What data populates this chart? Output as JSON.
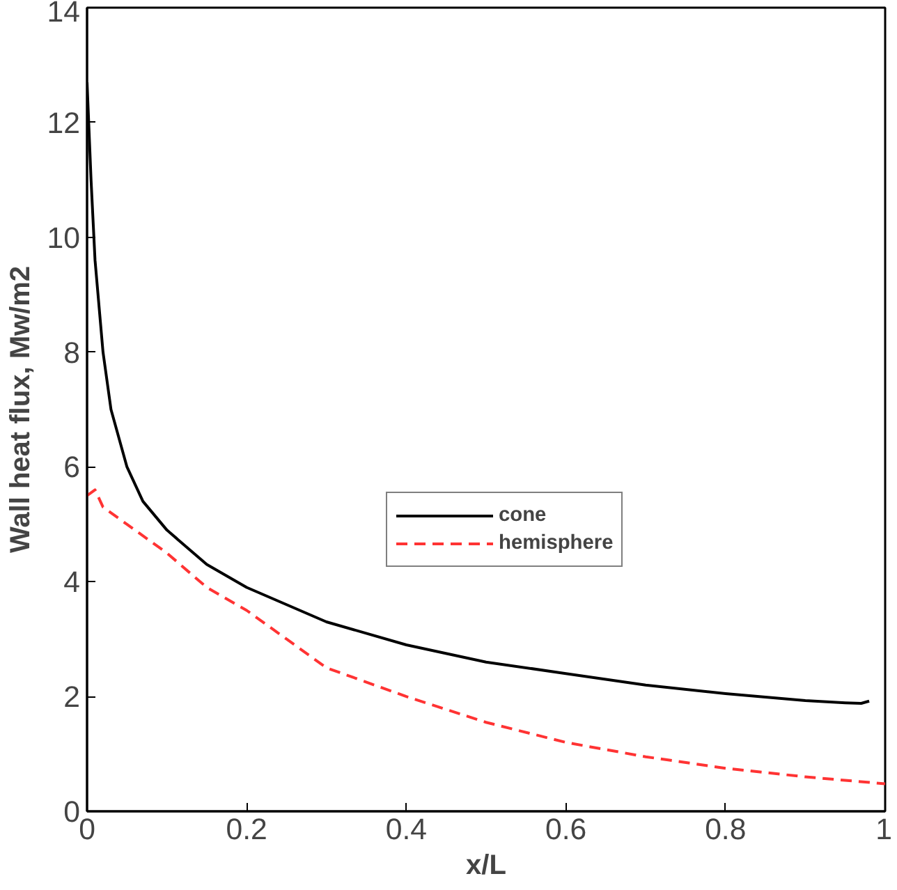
{
  "chart_data": {
    "type": "line",
    "xlabel": "x/L",
    "ylabel": "Wall heat flux, Mw/m2",
    "xlim": [
      0,
      1
    ],
    "ylim": [
      0,
      14
    ],
    "xticks": [
      0,
      0.2,
      0.4,
      0.6,
      0.8,
      1
    ],
    "yticks": [
      0,
      2,
      4,
      6,
      8,
      10,
      12,
      14
    ],
    "grid": false,
    "legend": "right",
    "marker": "none",
    "series": [
      {
        "name": "cone",
        "color": "#000000",
        "line_style": "solid",
        "x": [
          0,
          0.005,
          0.01,
          0.02,
          0.03,
          0.05,
          0.07,
          0.1,
          0.15,
          0.2,
          0.3,
          0.4,
          0.5,
          0.6,
          0.7,
          0.8,
          0.9,
          0.95,
          0.97,
          0.98
        ],
        "values": [
          12.7,
          11.0,
          9.6,
          8.0,
          7.0,
          6.0,
          5.4,
          4.9,
          4.3,
          3.9,
          3.3,
          2.9,
          2.6,
          2.4,
          2.2,
          2.05,
          1.93,
          1.89,
          1.88,
          1.92
        ]
      },
      {
        "name": "hemisphere",
        "color": "#ff3333",
        "line_style": "dashed",
        "x": [
          0,
          0.01,
          0.02,
          0.05,
          0.1,
          0.15,
          0.2,
          0.25,
          0.3,
          0.4,
          0.5,
          0.6,
          0.7,
          0.8,
          0.9,
          1.0
        ],
        "values": [
          5.5,
          5.6,
          5.3,
          5.0,
          4.5,
          3.9,
          3.5,
          3.0,
          2.5,
          2.0,
          1.55,
          1.2,
          0.95,
          0.75,
          0.6,
          0.48
        ]
      }
    ]
  }
}
